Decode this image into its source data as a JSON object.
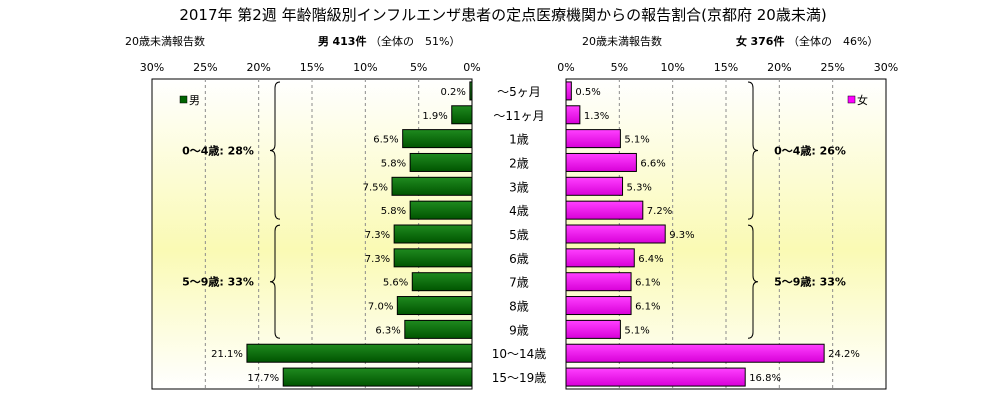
{
  "title": "2017年 第2週 年齢階級別インフルエンザ患者の定点医療機関からの報告割合(京都府 20歳未満)",
  "left_header": {
    "count_label": "20歳未満報告数",
    "sex": "男",
    "cases": "413件",
    "share": "（全体の　51%）"
  },
  "right_header": {
    "count_label": "20歳未満報告数",
    "sex": "女",
    "cases": "376件",
    "share": "（全体の　46%）"
  },
  "chart_data": {
    "type": "bar",
    "orientation": "horizontal-population-pyramid",
    "categories": [
      "～5ヶ月",
      "～11ヶ月",
      "1歳",
      "2歳",
      "3歳",
      "4歳",
      "5歳",
      "6歳",
      "7歳",
      "8歳",
      "9歳",
      "10～14歳",
      "15～19歳"
    ],
    "xlim": [
      0,
      30
    ],
    "ticks_left": [
      "30%",
      "25%",
      "20%",
      "15%",
      "10%",
      "5%",
      "0%"
    ],
    "ticks_right": [
      "0%",
      "5%",
      "10%",
      "15%",
      "20%",
      "25%",
      "30%"
    ],
    "series": [
      {
        "name": "男",
        "color": "#006400",
        "values": [
          0.2,
          1.9,
          6.5,
          5.8,
          7.5,
          5.8,
          7.3,
          7.3,
          5.6,
          7.0,
          6.3,
          21.1,
          17.7
        ],
        "labels": [
          "0.2%",
          "1.9%",
          "6.5%",
          "5.8%",
          "7.5%",
          "5.8%",
          "7.3%",
          "7.3%",
          "5.6%",
          "7.0%",
          "6.3%",
          "21.1%",
          "17.7%"
        ],
        "groups": [
          {
            "label": "0～4歳: 28%",
            "from": 0,
            "to": 5
          },
          {
            "label": "5～9歳: 33%",
            "from": 6,
            "to": 10
          }
        ]
      },
      {
        "name": "女",
        "color": "#ff00ff",
        "values": [
          0.5,
          1.3,
          5.1,
          6.6,
          5.3,
          7.2,
          9.3,
          6.4,
          6.1,
          6.1,
          5.1,
          24.2,
          16.8
        ],
        "labels": [
          "0.5%",
          "1.3%",
          "5.1%",
          "6.6%",
          "5.3%",
          "7.2%",
          "9.3%",
          "6.4%",
          "6.1%",
          "6.1%",
          "5.1%",
          "24.2%",
          "16.8%"
        ],
        "groups": [
          {
            "label": "0～4歳: 26%",
            "from": 0,
            "to": 5
          },
          {
            "label": "5～9歳: 33%",
            "from": 6,
            "to": 10
          }
        ]
      }
    ],
    "grid": true,
    "legend": "top-left (男), top-right (女)"
  }
}
